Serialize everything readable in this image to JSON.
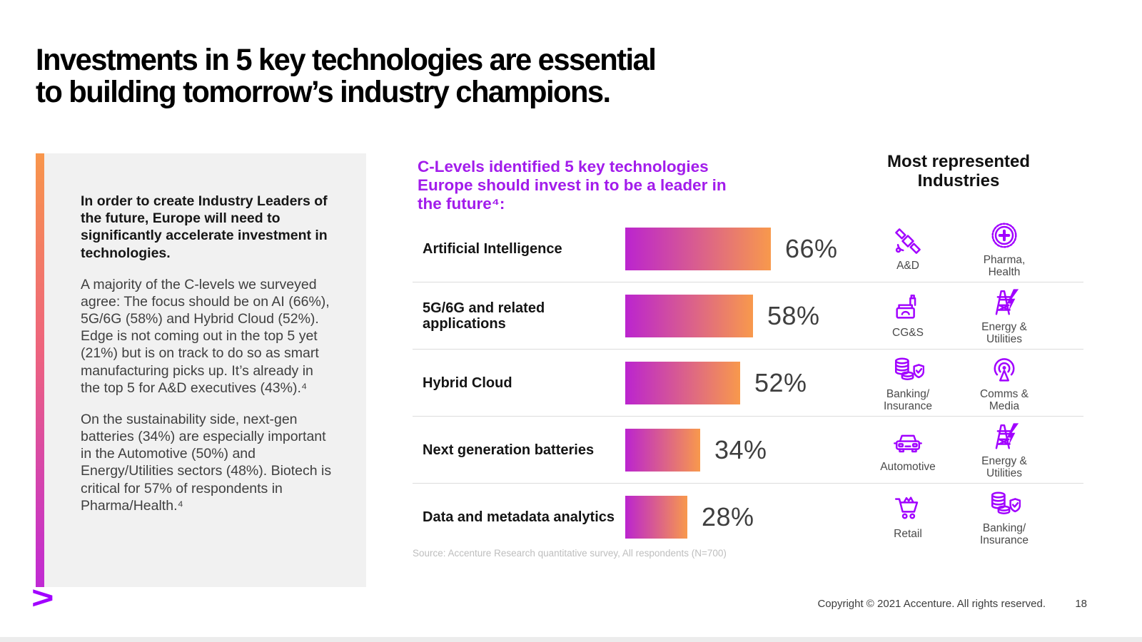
{
  "slide": {
    "title_lines": [
      "Investments in 5 key technologies are essential",
      "to building tomorrow’s industry champions."
    ]
  },
  "left_panel": {
    "heading": "In order to create Industry Leaders of the future, Europe will need to significantly accelerate investment in technologies.",
    "paragraphs": [
      "A majority of the C-levels we surveyed agree: The focus should be on AI (66%), 5G/6G (58%) and Hybrid Cloud (52%). Edge is not coming out in the top 5 yet (21%) but is on track to do so as smart manufacturing picks up. It’s already in the top 5 for A&D executives (43%).⁴",
      "On the sustainability side, next-gen batteries (34%) are especially important in the Automotive (50%) and Energy/Utilities sectors (48%). Biotech is critical for 57% of respondents in Pharma/Health.⁴"
    ]
  },
  "chart": {
    "heading_lines": [
      "C-Levels identified 5 key technologies",
      "Europe should invest in to be a leader in",
      "the future⁴:"
    ],
    "industries_heading_lines": [
      "Most represented",
      "Industries"
    ],
    "rows": [
      {
        "label": "Artificial Intelligence",
        "value": 66,
        "pct": "66%",
        "industries": [
          {
            "icon": "aerospace-defense",
            "label": "A&D"
          },
          {
            "icon": "pharma-health",
            "label": "Pharma,\nHealth"
          }
        ]
      },
      {
        "label": "5G/6G and related applications",
        "value": 58,
        "pct": "58%",
        "industries": [
          {
            "icon": "consumer-goods",
            "label": "CG&S"
          },
          {
            "icon": "energy-utilities",
            "label": "Energy &\nUtilities"
          }
        ]
      },
      {
        "label": "Hybrid Cloud",
        "value": 52,
        "pct": "52%",
        "industries": [
          {
            "icon": "banking-insurance",
            "label": "Banking/\nInsurance"
          },
          {
            "icon": "comms-media",
            "label": "Comms &\nMedia"
          }
        ]
      },
      {
        "label": "Next generation batteries",
        "value": 34,
        "pct": "34%",
        "industries": [
          {
            "icon": "automotive",
            "label": "Automotive"
          },
          {
            "icon": "energy-utilities",
            "label": "Energy &\nUtilities"
          }
        ]
      },
      {
        "label": "Data and metadata analytics",
        "value": 28,
        "pct": "28%",
        "industries": [
          {
            "icon": "retail",
            "label": "Retail"
          },
          {
            "icon": "banking-insurance",
            "label": "Banking/\nInsurance"
          }
        ]
      }
    ],
    "source": "Source: Accenture Research quantitative survey, All respondents (N=700)"
  },
  "chart_data": {
    "type": "bar",
    "orientation": "horizontal",
    "title": "C-Levels identified 5 key technologies Europe should invest in to be a leader in the future⁴:",
    "categories": [
      "Artificial Intelligence",
      "5G/6G and related applications",
      "Hybrid Cloud",
      "Next generation batteries",
      "Data and metadata analytics"
    ],
    "values": [
      66,
      58,
      52,
      34,
      28
    ],
    "data_labels": [
      "66%",
      "58%",
      "52%",
      "34%",
      "28%"
    ],
    "unit": "%",
    "xlim": [
      0,
      100
    ],
    "grid": false,
    "legend": false,
    "most_represented_industries_per_bar": [
      [
        "A&D",
        "Pharma, Health"
      ],
      [
        "CG&S",
        "Energy & Utilities"
      ],
      [
        "Banking/Insurance",
        "Comms & Media"
      ],
      [
        "Automotive",
        "Energy & Utilities"
      ],
      [
        "Retail",
        "Banking/Insurance"
      ]
    ],
    "source": "Source: Accenture Research quantitative survey, All respondents (N=700)"
  },
  "colors": {
    "accent_purple": "#A100FF",
    "heading_purple": "#A21CEB",
    "bar_gradient_start": "#BB24CF",
    "bar_gradient_end": "#F8994C",
    "accent_bar_top": "#F8964B",
    "accent_bar_bottom": "#C02AD4",
    "panel_background": "#F1F1F1"
  },
  "footer": {
    "logo_glyph": ">",
    "copyright": "Copyright © 2021 Accenture. All rights reserved.",
    "page_number": "18"
  }
}
